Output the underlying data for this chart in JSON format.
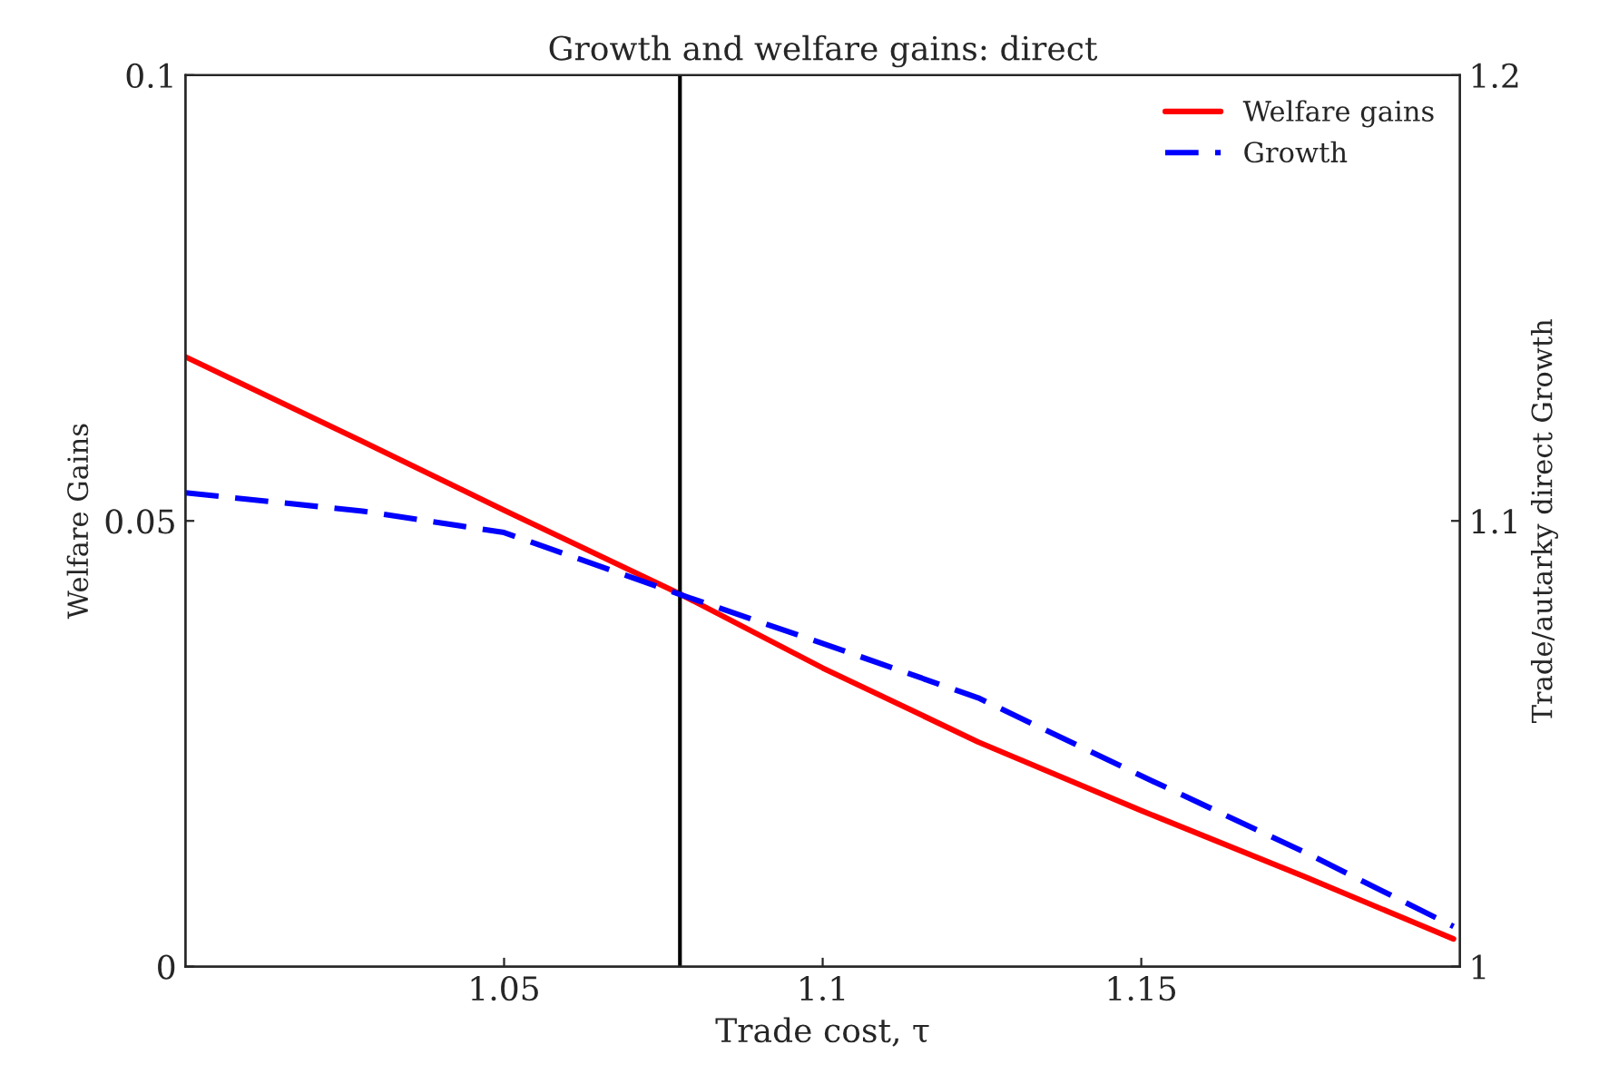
{
  "chart_data": {
    "type": "line",
    "title": "Growth and welfare gains: direct",
    "xlabel": "Trade cost, τ",
    "ylabel": "Welfare Gains",
    "y2label": "Trade/autarky direct Growth",
    "xlim": [
      1.0,
      1.2
    ],
    "xticks": [
      1.05,
      1.1,
      1.15
    ],
    "ylim": [
      0,
      0.1
    ],
    "yticks": [
      0,
      0.05,
      0.1
    ],
    "y2lim": [
      1,
      1.2
    ],
    "y2ticks": [
      1,
      1.1,
      1.2
    ],
    "series": [
      {
        "name": "Welfare gains",
        "color": "#ff0000",
        "line_style": "solid",
        "x": [
          1.0,
          1.0278,
          1.05,
          1.0776,
          1.1,
          1.1244,
          1.15,
          1.1756,
          1.199
        ],
        "values": [
          0.0684,
          0.0589,
          0.0512,
          0.0418,
          0.0335,
          0.0252,
          0.0175,
          0.0101,
          0.0031
        ]
      },
      {
        "name": "Growth",
        "color": "#0000ff",
        "line_style": "dashed",
        "axis": "y2",
        "x": [
          1.0,
          1.0278,
          1.05,
          1.0776,
          1.1,
          1.1244,
          1.15,
          1.1756,
          1.199
        ],
        "values": [
          1.1063,
          1.1022,
          1.0974,
          1.0835,
          1.0725,
          1.0603,
          1.0428,
          1.0257,
          1.009
        ]
      }
    ],
    "ref_lines": [
      {
        "axis": "x",
        "value": 1.0776,
        "color": "#000000"
      }
    ],
    "legend": "top right",
    "grid": false
  }
}
